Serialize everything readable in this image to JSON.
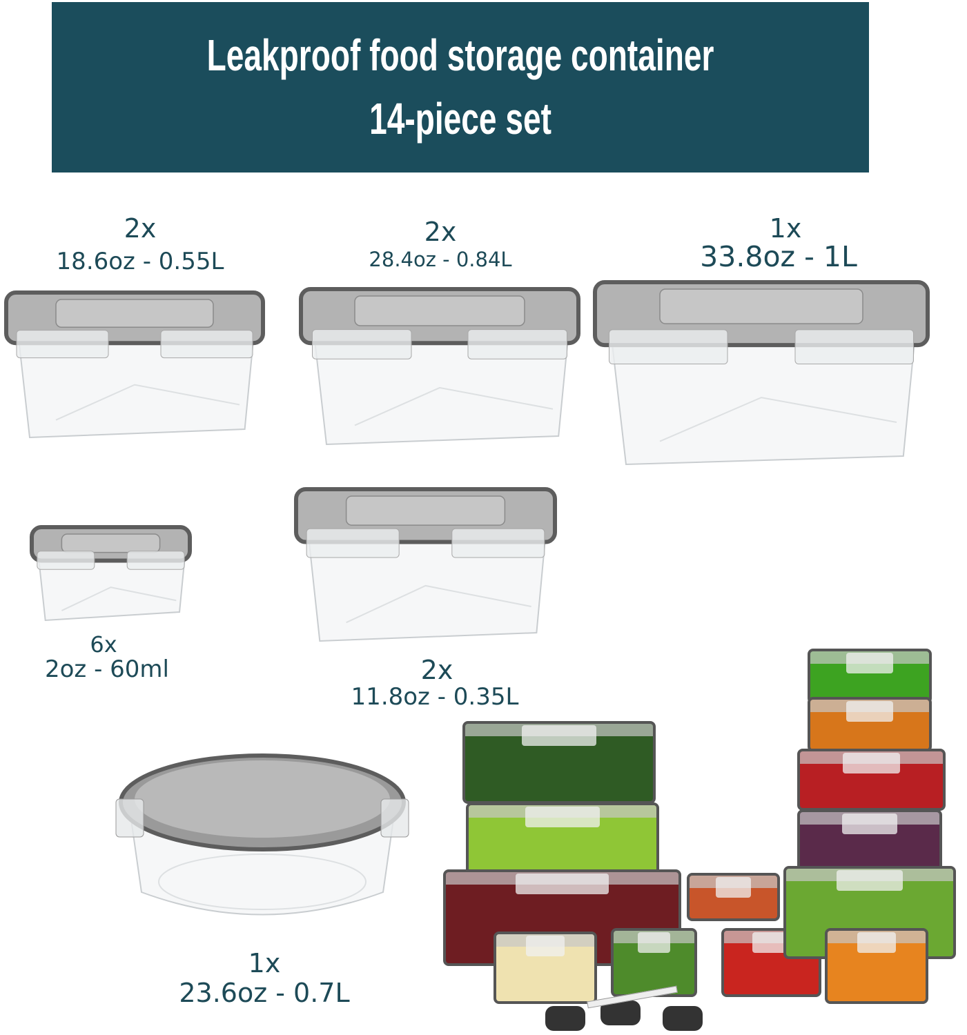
{
  "header": {
    "line1": "Leakproof food storage container",
    "line2": "14-piece set",
    "background_color": "#1b4d5c"
  },
  "containers": [
    {
      "quantity": "2x",
      "size": "18.6oz - 0.55L"
    },
    {
      "quantity": "2x",
      "size": "28.4oz - 0.84L"
    },
    {
      "quantity": "1x",
      "size": "33.8oz - 1L"
    },
    {
      "quantity": "6x",
      "size": "2oz - 60ml"
    },
    {
      "quantity": "2x",
      "size": "11.8oz - 0.35L"
    },
    {
      "quantity": "1x",
      "size": "23.6oz - 0.7L"
    }
  ],
  "colors": {
    "label_text": "#1d4a57",
    "lid": "#6b6b6b"
  }
}
